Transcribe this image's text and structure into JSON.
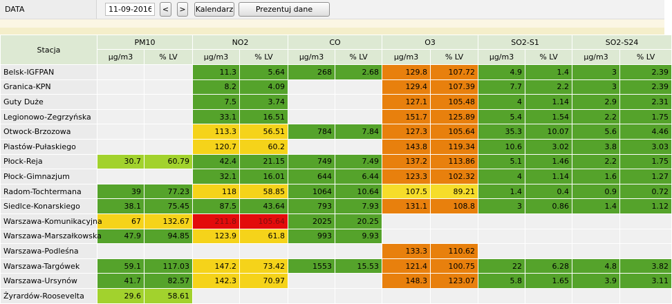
{
  "toolbar": {
    "label": "DATA",
    "date_value": "11-09-2016",
    "prev_label": "<",
    "next_label": ">",
    "calendar_label": "Kalendarz",
    "present_label": "Prezentuj dane"
  },
  "table": {
    "station_header": "Stacja",
    "groups": [
      "PM10",
      "NO2",
      "CO",
      "O3",
      "SO2-S1",
      "SO2-S24"
    ],
    "units": [
      "µg/m3",
      "% LV"
    ],
    "rows": [
      {
        "station": "Belsk-IGFPAN",
        "cells": [
          "",
          "",
          "11.3",
          "5.64",
          "268",
          "2.68",
          "129.8",
          "107.72",
          "4.9",
          "1.4",
          "3",
          "2.39"
        ]
      },
      {
        "station": "Granica-KPN",
        "cells": [
          "",
          "",
          "8.2",
          "4.09",
          "",
          "",
          "129.4",
          "107.39",
          "7.7",
          "2.2",
          "3",
          "2.39"
        ]
      },
      {
        "station": "Guty Duże",
        "cells": [
          "",
          "",
          "7.5",
          "3.74",
          "",
          "",
          "127.1",
          "105.48",
          "4",
          "1.14",
          "2.9",
          "2.31"
        ]
      },
      {
        "station": "Legionowo-Zegrzyńska",
        "cells": [
          "",
          "",
          "33.1",
          "16.51",
          "",
          "",
          "151.7",
          "125.89",
          "5.4",
          "1.54",
          "2.2",
          "1.75"
        ]
      },
      {
        "station": "Otwock-Brzozowa",
        "cells": [
          "",
          "",
          "113.3",
          "56.51",
          "784",
          "7.84",
          "127.3",
          "105.64",
          "35.3",
          "10.07",
          "5.6",
          "4.46"
        ]
      },
      {
        "station": "Piastów-Pułaskiego",
        "cells": [
          "",
          "",
          "120.7",
          "60.2",
          "",
          "",
          "143.8",
          "119.34",
          "10.6",
          "3.02",
          "3.8",
          "3.03"
        ]
      },
      {
        "station": "Płock-Reja",
        "cells": [
          "30.7",
          "60.79",
          "42.4",
          "21.15",
          "749",
          "7.49",
          "137.2",
          "113.86",
          "5.1",
          "1.46",
          "2.2",
          "1.75"
        ]
      },
      {
        "station": "Płock-Gimnazjum",
        "cells": [
          "",
          "",
          "32.1",
          "16.01",
          "644",
          "6.44",
          "123.3",
          "102.32",
          "4",
          "1.14",
          "1.6",
          "1.27"
        ]
      },
      {
        "station": "Radom-Tochtermana",
        "cells": [
          "39",
          "77.23",
          "118",
          "58.85",
          "1064",
          "10.64",
          "107.5",
          "89.21",
          "1.4",
          "0.4",
          "0.9",
          "0.72"
        ]
      },
      {
        "station": "Siedlce-Konarskiego",
        "cells": [
          "38.1",
          "75.45",
          "87.5",
          "43.64",
          "793",
          "7.93",
          "131.1",
          "108.8",
          "3",
          "0.86",
          "1.4",
          "1.12"
        ]
      },
      {
        "station": "Warszawa-Komunikacyjna",
        "cells": [
          "67",
          "132.67",
          "211.8",
          "105.64",
          "2025",
          "20.25",
          "",
          "",
          "",
          "",
          "",
          ""
        ]
      },
      {
        "station": "Warszawa-Marszałkowska",
        "cells": [
          "47.9",
          "94.85",
          "123.9",
          "61.8",
          "993",
          "9.93",
          "",
          "",
          "",
          "",
          "",
          ""
        ]
      },
      {
        "station": "Warszawa-Podleśna",
        "cells": [
          "",
          "",
          "",
          "",
          "",
          "",
          "133.3",
          "110.62",
          "",
          "",
          "",
          ""
        ]
      },
      {
        "station": "Warszawa-Targówek",
        "cells": [
          "59.1",
          "117.03",
          "147.2",
          "73.42",
          "1553",
          "15.53",
          "121.4",
          "100.75",
          "22",
          "6.28",
          "4.8",
          "3.82"
        ]
      },
      {
        "station": "Warszawa-Ursynów",
        "cells": [
          "41.7",
          "82.57",
          "142.3",
          "70.97",
          "",
          "",
          "148.3",
          "123.07",
          "5.8",
          "1.65",
          "3.9",
          "3.11"
        ]
      },
      {
        "station": "Żyrardów-Roosevelta",
        "cells": [
          "29.6",
          "58.61",
          "",
          "",
          "",
          "",
          "",
          "",
          "",
          "",
          "",
          ""
        ]
      }
    ]
  },
  "colors": {
    "good": "#55a32b",
    "very_good": "#a2d22d",
    "moderate": "#f5d31a",
    "sufficient": "#e8800d",
    "very_bad": "#e30b0b",
    "empty": "#f0f0f0",
    "header": "#dde9d3"
  }
}
